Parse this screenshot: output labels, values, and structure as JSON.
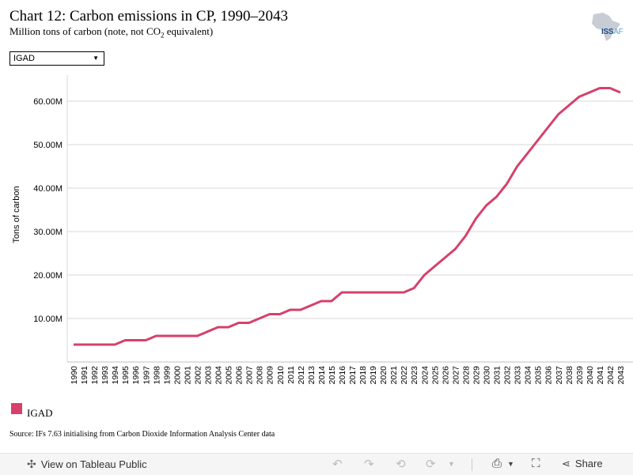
{
  "header": {
    "title": "Chart 12: Carbon emissions in CP, 1990–2043",
    "subtitle_pre": "Million tons of carbon (note, not CO",
    "subtitle_sub": "2",
    "subtitle_post": " equivalent)"
  },
  "logo": {
    "text_main": "ISS",
    "text_suffix": "AF",
    "icon": "africa-map-icon"
  },
  "filter": {
    "selected": "IGAD",
    "icon": "dropdown-arrow-icon"
  },
  "legend": {
    "label": "IGAD",
    "color": "#d6406a"
  },
  "source": "Source: IFs 7.63 initialising from Carbon Dioxide Information Analysis Center data",
  "toolbar": {
    "view_label": "View on Tableau Public",
    "share_label": "Share",
    "icons": [
      "tableau-logo-icon",
      "undo-icon",
      "redo-icon",
      "revert-icon",
      "refresh-icon",
      "download-icon",
      "fullscreen-icon",
      "share-icon"
    ]
  },
  "chart_data": {
    "type": "line",
    "title": "",
    "xlabel": "",
    "ylabel": "Tons of carbon",
    "x": [
      "1990",
      "1991",
      "1992",
      "1993",
      "1994",
      "1995",
      "1996",
      "1997",
      "1998",
      "1999",
      "2000",
      "2001",
      "2002",
      "2003",
      "2004",
      "2005",
      "2006",
      "2007",
      "2008",
      "2009",
      "2010",
      "2011",
      "2012",
      "2013",
      "2014",
      "2015",
      "2016",
      "2017",
      "2018",
      "2019",
      "2020",
      "2021",
      "2022",
      "2023",
      "2024",
      "2025",
      "2026",
      "2027",
      "2028",
      "2029",
      "2030",
      "2031",
      "2032",
      "2033",
      "2034",
      "2035",
      "2036",
      "2037",
      "2038",
      "2039",
      "2040",
      "2041",
      "2042",
      "2043"
    ],
    "series": [
      {
        "name": "IGAD",
        "color": "#d6406a",
        "values": [
          4,
          4,
          4,
          4,
          4,
          5,
          5,
          5,
          6,
          6,
          6,
          6,
          6,
          7,
          8,
          8,
          9,
          9,
          10,
          11,
          11,
          12,
          12,
          13,
          14,
          14,
          16,
          16,
          16,
          16,
          16,
          16,
          16,
          17,
          20,
          22,
          24,
          26,
          29,
          33,
          36,
          38,
          41,
          45,
          48,
          51,
          54,
          57,
          59,
          61,
          62,
          63,
          63,
          62
        ]
      }
    ],
    "yticks": [
      10,
      20,
      30,
      40,
      50,
      60
    ],
    "ytick_labels": [
      "10.00M",
      "20.00M",
      "30.00M",
      "40.00M",
      "50.00M",
      "60.00M"
    ],
    "ylim": [
      0,
      66
    ],
    "grid": true,
    "legend_position": "bottom-left"
  }
}
